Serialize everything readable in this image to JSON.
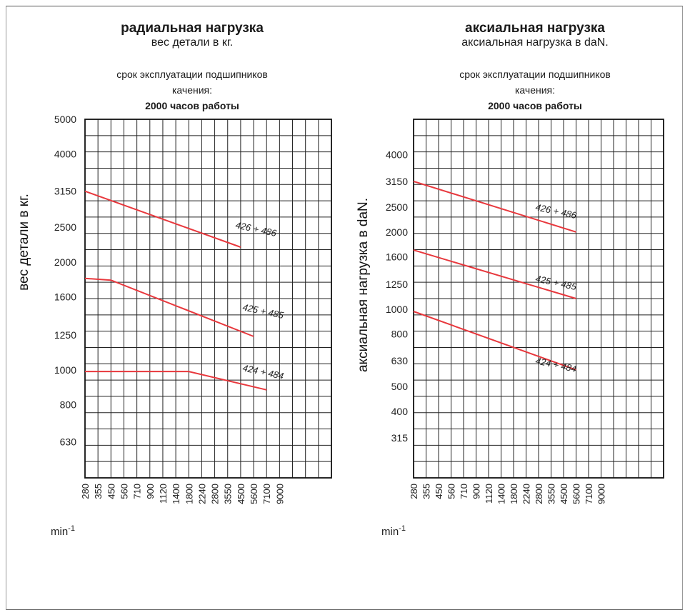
{
  "chart_data": [
    {
      "type": "line",
      "title": "радиальная нагрузка",
      "subtitle": "вес детали в кг.",
      "caption_lines": [
        "срок эксплуатации подшипников",
        "качения:",
        "2000 часов работы"
      ],
      "ylabel": "вес детали в кг.",
      "xlabel": "min-1",
      "xlabel_base": "min",
      "xlabel_sup": "-1",
      "x_ticks": [
        "280",
        "355",
        "450",
        "560",
        "710",
        "900",
        "1120",
        "1400",
        "1800",
        "2240",
        "2800",
        "3550",
        "4500",
        "5600",
        "7100",
        "9000"
      ],
      "y_ticks": [
        "5000",
        "4000",
        "3150",
        "2500",
        "2000",
        "1600",
        "1250",
        "1000",
        "800",
        "630"
      ],
      "y_scale": "log",
      "grid": true,
      "series": [
        {
          "name": "426 + 486",
          "color": "#e8383d",
          "points": [
            [
              280,
              3150
            ],
            [
              4500,
              2200
            ]
          ]
        },
        {
          "name": "425 + 485",
          "color": "#e8383d",
          "points": [
            [
              280,
              1800
            ],
            [
              450,
              1780
            ],
            [
              5600,
              1240
            ]
          ]
        },
        {
          "name": "424 + 484",
          "color": "#e8383d",
          "points": [
            [
              280,
              990
            ],
            [
              1800,
              990
            ],
            [
              7100,
              880
            ]
          ]
        }
      ]
    },
    {
      "type": "line",
      "title": "аксиальная нагрузка",
      "subtitle": "аксиальная нагрузка в daN.",
      "caption_lines": [
        "срок эксплуатации подшипников",
        "качения:",
        "2000 часов работы"
      ],
      "ylabel": "аксиальная нагрузка в daN.",
      "xlabel": "min-1",
      "xlabel_base": "min",
      "xlabel_sup": "-1",
      "x_ticks": [
        "280",
        "355",
        "450",
        "560",
        "710",
        "900",
        "1120",
        "1400",
        "1800",
        "2240",
        "2800",
        "3550",
        "4500",
        "5600",
        "7100",
        "9000"
      ],
      "y_ticks": [
        "4000",
        "3150",
        "2500",
        "2000",
        "1600",
        "1250",
        "1000",
        "800",
        "630",
        "500",
        "400",
        "315"
      ],
      "y_scale": "log",
      "grid": true,
      "series": [
        {
          "name": "426 + 486",
          "color": "#e8383d",
          "points": [
            [
              280,
              3150
            ],
            [
              5600,
              2000
            ]
          ]
        },
        {
          "name": "425 + 485",
          "color": "#e8383d",
          "points": [
            [
              280,
              1700
            ],
            [
              5600,
              1100
            ]
          ]
        },
        {
          "name": "424 + 484",
          "color": "#e8383d",
          "points": [
            [
              280,
              980
            ],
            [
              5600,
              580
            ]
          ]
        }
      ]
    }
  ]
}
